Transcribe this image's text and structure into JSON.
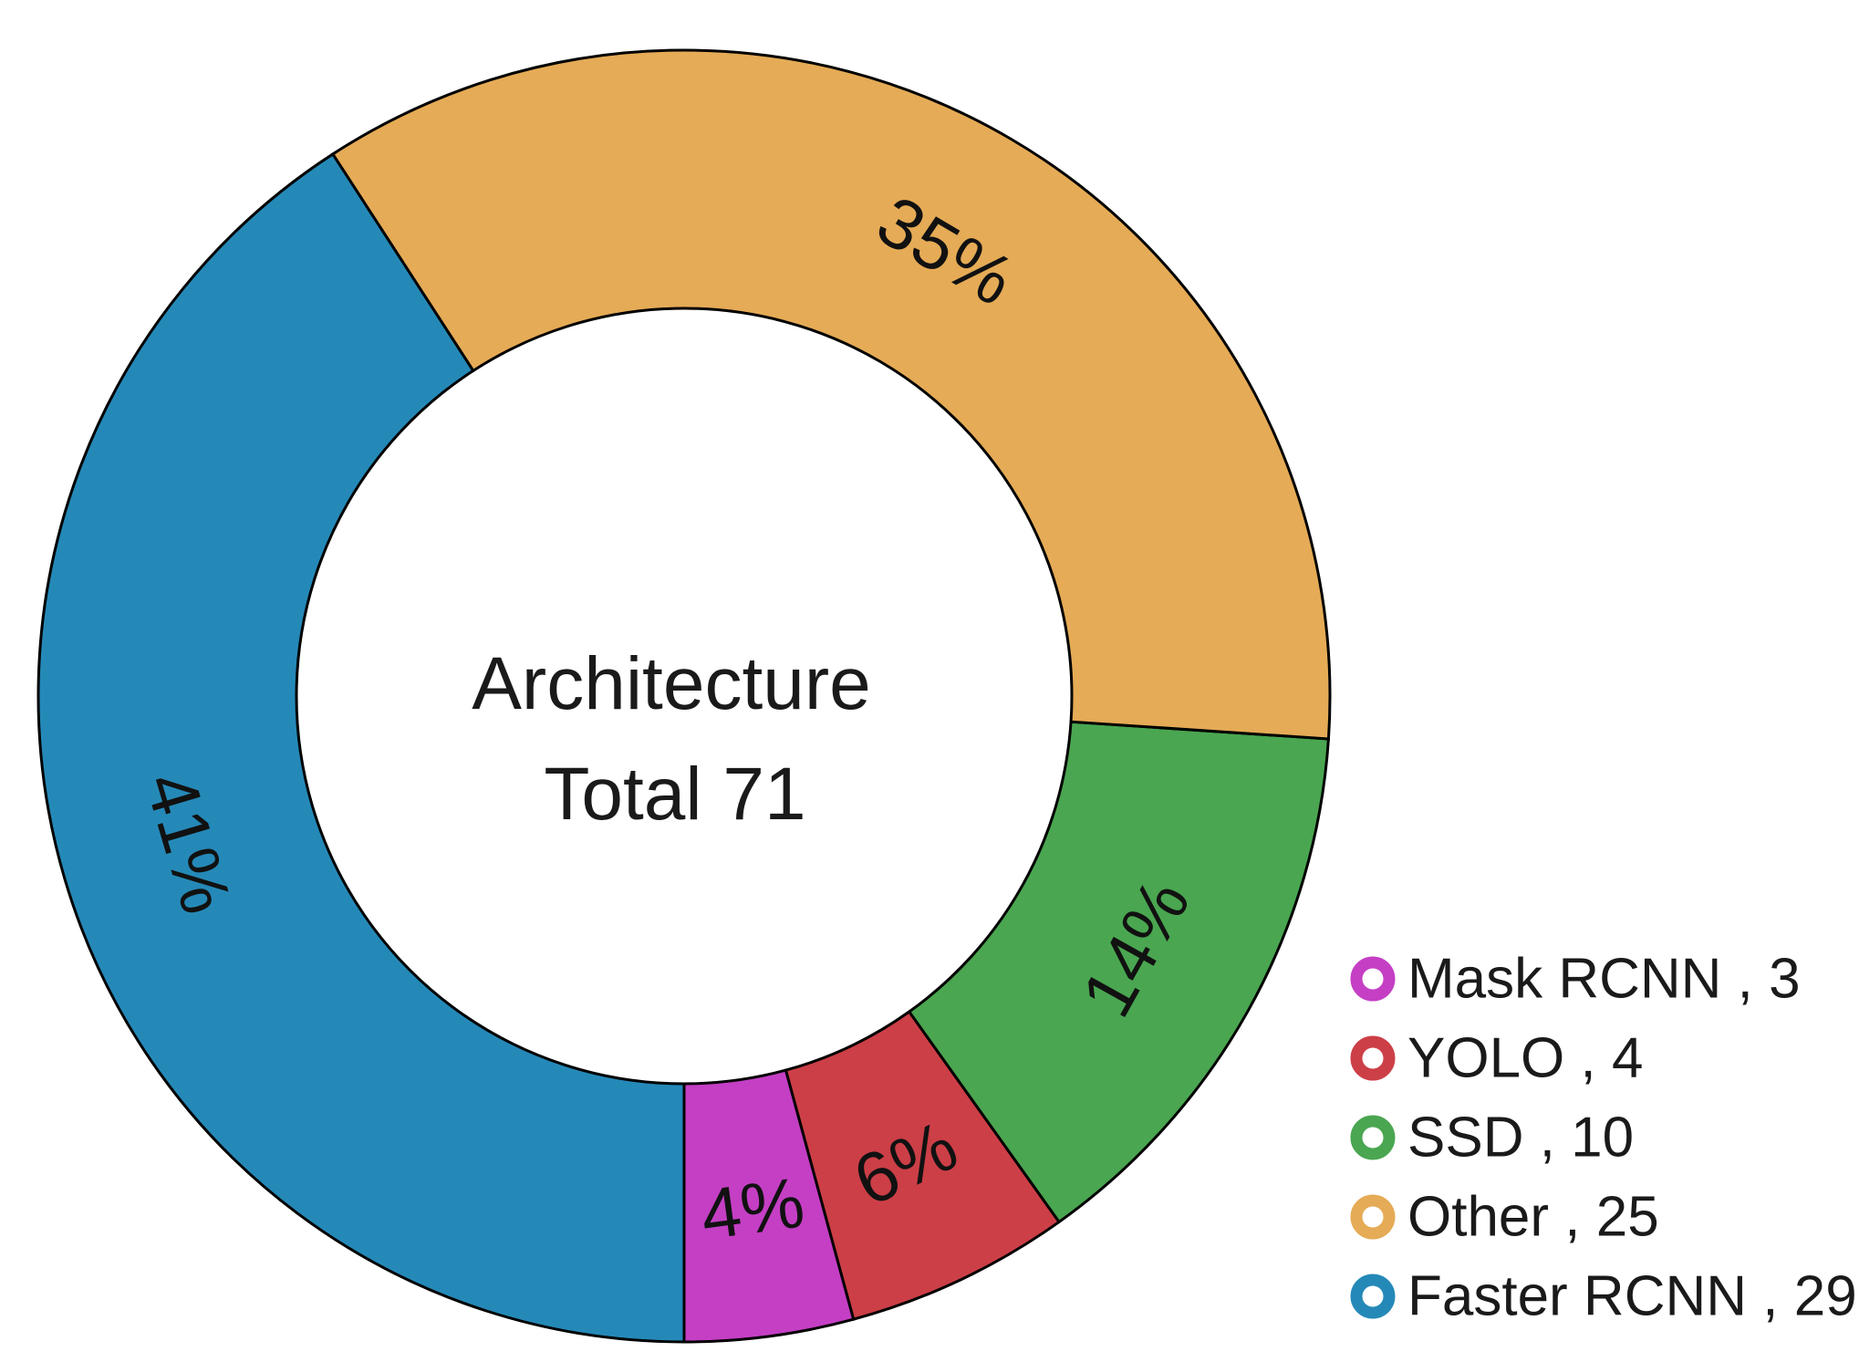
{
  "chart_data": {
    "type": "pie",
    "variant": "donut",
    "center_text": [
      "Architecture",
      "Total 71"
    ],
    "total": 71,
    "series": [
      {
        "name": "Mask RCNN",
        "value": 3,
        "percent_label": "4%",
        "legend_label": "Mask RCNN , 3",
        "color": "#c43fc4"
      },
      {
        "name": "YOLO",
        "value": 4,
        "percent_label": "6%",
        "legend_label": "YOLO , 4",
        "color": "#cc3f47"
      },
      {
        "name": "SSD",
        "value": 10,
        "percent_label": "14%",
        "legend_label": "SSD , 10",
        "color": "#4aa651"
      },
      {
        "name": "Other",
        "value": 25,
        "percent_label": "35%",
        "legend_label": "Other , 25",
        "color": "#e5ab56"
      },
      {
        "name": "Faster RCNN",
        "value": 29,
        "percent_label": "41%",
        "legend_label": "Faster RCNN , 29",
        "color": "#2589b8"
      }
    ],
    "start_position": "bottom",
    "direction": "counterclockwise",
    "legend_placement": "bottom-right"
  }
}
